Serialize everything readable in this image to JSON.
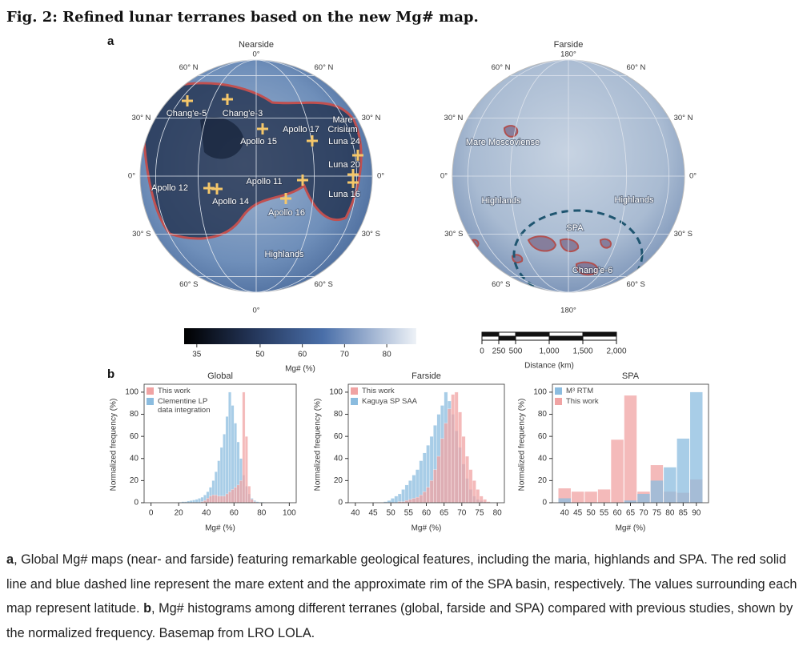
{
  "figure": {
    "title": "Fig. 2: Refined lunar terranes based on the new Mg# map.",
    "panel_a": "a",
    "panel_b": "b"
  },
  "maps": [
    {
      "title": "Nearside",
      "top_label": "0°",
      "bottom_label": "0°",
      "lat_left": [
        "60° N",
        "30° N",
        "0°",
        "30° S",
        "60° S"
      ],
      "lat_right": [
        "60° N",
        "30° N",
        "0°",
        "30° S",
        "60° S"
      ],
      "features": [
        {
          "label": "Chang'e-5"
        },
        {
          "label": "Chang'e-3"
        },
        {
          "label": "Apollo 17"
        },
        {
          "lines": [
            "Mare",
            "Crisium"
          ]
        },
        {
          "label": "Apollo 15"
        },
        {
          "label": "Luna 24"
        },
        {
          "label": "Luna 20"
        },
        {
          "label": "Apollo 11"
        },
        {
          "label": "Apollo 12"
        },
        {
          "label": "Apollo 14"
        },
        {
          "label": "Luna 16"
        },
        {
          "label": "Apollo 16"
        },
        {
          "label": "Highlands"
        }
      ]
    },
    {
      "title": "Farside",
      "top_label": "180°",
      "bottom_label": "180°",
      "lat_left": [
        "60° N",
        "30° N",
        "0°",
        "30° S",
        "60° S"
      ],
      "lat_right": [
        "60° N",
        "30° N",
        "0°",
        "30° S",
        "60° S"
      ],
      "features": [
        {
          "label": "Mare Moscoviense"
        },
        {
          "label": "Highlands"
        },
        {
          "label": "Highlands"
        },
        {
          "label": "SPA"
        },
        {
          "label": "Chang'e-6"
        }
      ]
    }
  ],
  "colorbar": {
    "label": "Mg# (%)",
    "lim": [
      32,
      87
    ],
    "ticks": [
      35,
      50,
      60,
      70,
      80
    ]
  },
  "scalebar": {
    "label": "Distance (km)",
    "lim": [
      0,
      2000
    ],
    "ticks": [
      0,
      250,
      500,
      {
        "value": 1000,
        "label": "1,000"
      },
      {
        "value": 1500,
        "label": "1,500"
      },
      {
        "value": 2000,
        "label": "2,000"
      }
    ]
  },
  "chart_data": [
    {
      "type": "histogram",
      "title": "Global",
      "xlabel": "Mg# (%)",
      "ylabel": "Normalized frequency (%)",
      "xlim": [
        -5,
        105
      ],
      "xticks": [
        0,
        20,
        40,
        60,
        80,
        100
      ],
      "ylim": [
        0,
        105
      ],
      "yticks": [
        0,
        20,
        40,
        60,
        80,
        100
      ],
      "legend": "upper left",
      "bins": [
        20,
        22,
        24,
        26,
        28,
        30,
        32,
        34,
        36,
        38,
        40,
        42,
        44,
        46,
        48,
        50,
        52,
        54,
        56,
        58,
        60,
        62,
        64,
        66,
        68,
        70,
        72,
        74,
        76,
        78,
        80,
        82,
        84
      ],
      "series": [
        {
          "name": "Clementine LP data integration",
          "color": "#8bbcdf",
          "values": [
            0.5,
            1,
            1,
            1.5,
            2,
            2.5,
            3,
            4,
            5,
            7,
            10,
            14,
            20,
            28,
            38,
            50,
            62,
            78,
            100,
            88,
            72,
            55,
            40,
            25,
            15,
            8,
            4,
            2,
            1,
            0.5,
            0.5,
            0
          ]
        },
        {
          "name": "This work",
          "color": "#f0a3a3",
          "values": [
            0,
            0,
            0,
            0,
            0,
            0,
            0,
            0,
            1,
            2,
            4,
            6,
            7,
            7,
            6,
            6,
            6,
            8,
            10,
            12,
            14,
            16,
            20,
            100,
            60,
            15,
            3,
            1,
            0,
            0,
            0,
            0
          ]
        }
      ]
    },
    {
      "type": "histogram",
      "title": "Farside",
      "xlabel": "Mg# (%)",
      "ylabel": "Normalized frequency (%)",
      "xlim": [
        38,
        82
      ],
      "xticks": [
        40,
        45,
        50,
        55,
        60,
        65,
        70,
        75,
        80
      ],
      "ylim": [
        0,
        105
      ],
      "yticks": [
        0,
        20,
        40,
        60,
        80,
        100
      ],
      "legend": "upper left",
      "bins": [
        47,
        48,
        49,
        50,
        51,
        52,
        53,
        54,
        55,
        56,
        57,
        58,
        59,
        60,
        61,
        62,
        63,
        64,
        65,
        66,
        67,
        68,
        69,
        70,
        71,
        72,
        73,
        74,
        75,
        76,
        77,
        78
      ],
      "series": [
        {
          "name": "Kaguya SP SAA",
          "color": "#8bbcdf",
          "values": [
            0,
            1,
            2,
            4,
            6,
            8,
            12,
            16,
            20,
            25,
            30,
            38,
            45,
            52,
            60,
            70,
            80,
            88,
            100,
            92,
            80,
            65,
            50,
            35,
            22,
            12,
            6,
            3,
            2,
            1,
            0
          ]
        },
        {
          "name": "This work",
          "color": "#f0a3a3",
          "values": [
            0,
            0,
            0,
            0,
            0,
            1,
            1,
            2,
            3,
            4,
            5,
            7,
            10,
            14,
            20,
            30,
            42,
            58,
            72,
            85,
            98,
            100,
            82,
            60,
            42,
            30,
            20,
            12,
            6,
            3,
            1
          ]
        }
      ]
    },
    {
      "type": "bar",
      "title": "SPA",
      "xlabel": "Mg# (%)",
      "ylabel": "Normalized frequency (%)",
      "categories": [
        "40",
        "45",
        "50",
        "55",
        "60",
        "65",
        "70",
        "75",
        "80",
        "85",
        "90"
      ],
      "ylim": [
        0,
        105
      ],
      "yticks": [
        0,
        20,
        40,
        60,
        80,
        100
      ],
      "legend": "upper left",
      "series": [
        {
          "name": "This work",
          "color": "#f0a3a3",
          "values": [
            13,
            10,
            10,
            12,
            57,
            97,
            10,
            34,
            10,
            9,
            21
          ]
        },
        {
          "name": "M³ RTM",
          "color": "#8bbcdf",
          "values": [
            4,
            0,
            0,
            0,
            0,
            2,
            8,
            20,
            32,
            58,
            100
          ]
        }
      ]
    }
  ],
  "caption": [
    "a",
    ", Global Mg# maps (near- and farside) featuring remarkable geological features, including the maria, highlands and SPA. The red solid line and blue dashed line represent the mare extent and the approximate rim of the SPA basin, respectively. The values surrounding each map represent latitude. ",
    "b",
    ", Mg# histograms among different terranes (global, farside and SPA) compared with previous studies, shown by the normalized frequency. Basemap from LRO LOLA."
  ]
}
